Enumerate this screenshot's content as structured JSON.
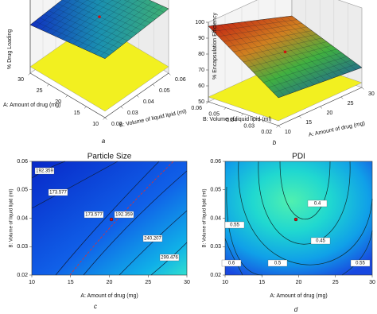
{
  "chart_data": [
    {
      "type": "surface3d",
      "zlabel": "% Drug Loading",
      "xlabel": "A: Amount of drug (mg)",
      "ylabel": "B: Volume of liquid lipid (ml)",
      "xlim": [
        10,
        30
      ],
      "xticks": [
        10,
        15,
        20,
        25,
        30
      ],
      "ylim": [
        0.02,
        0.06
      ],
      "yticks": [
        0.02,
        0.03,
        0.04,
        0.05,
        0.06
      ],
      "caption": "a"
    },
    {
      "type": "surface3d",
      "zlabel": "% Encapsulation Efficiency",
      "xlabel": "A: Amount of drug (mg)",
      "ylabel": "B: Volume of liquid lipid (ml)",
      "xlim": [
        10,
        30
      ],
      "xticks": [
        10,
        15,
        20,
        25,
        30
      ],
      "ylim": [
        0.02,
        0.06
      ],
      "yticks": [
        0.02,
        0.03,
        0.04,
        0.05,
        0.06
      ],
      "zlim": [
        50,
        100
      ],
      "zticks": [
        50,
        60,
        70,
        80,
        90,
        100
      ],
      "caption": "b"
    },
    {
      "type": "contour",
      "title": "Particle Size",
      "xlabel": "A: Amount of drug (mg)",
      "ylabel": "B: Volume of liquid lipid (ml)",
      "xlim": [
        10,
        30
      ],
      "xticks": [
        10,
        15,
        20,
        25,
        30
      ],
      "ylim": [
        0.02,
        0.06
      ],
      "yticks": [
        0.02,
        0.03,
        0.04,
        0.05,
        0.06
      ],
      "contours": [
        192.359,
        173.577,
        173.577,
        192.359,
        240.207,
        299.476
      ],
      "caption": "c"
    },
    {
      "type": "contour",
      "title": "PDI",
      "xlabel": "A: Amount of drug (mg)",
      "ylabel": "B: Volume of liquid lipid (ml)",
      "xlim": [
        10,
        30
      ],
      "xticks": [
        10,
        15,
        20,
        25,
        30
      ],
      "ylim": [
        0.02,
        0.06
      ],
      "yticks": [
        0.02,
        0.03,
        0.04,
        0.05,
        0.06
      ],
      "contours": [
        0.55,
        0.4,
        0.45,
        0.6,
        0.5,
        0.55
      ],
      "caption": "d"
    }
  ]
}
